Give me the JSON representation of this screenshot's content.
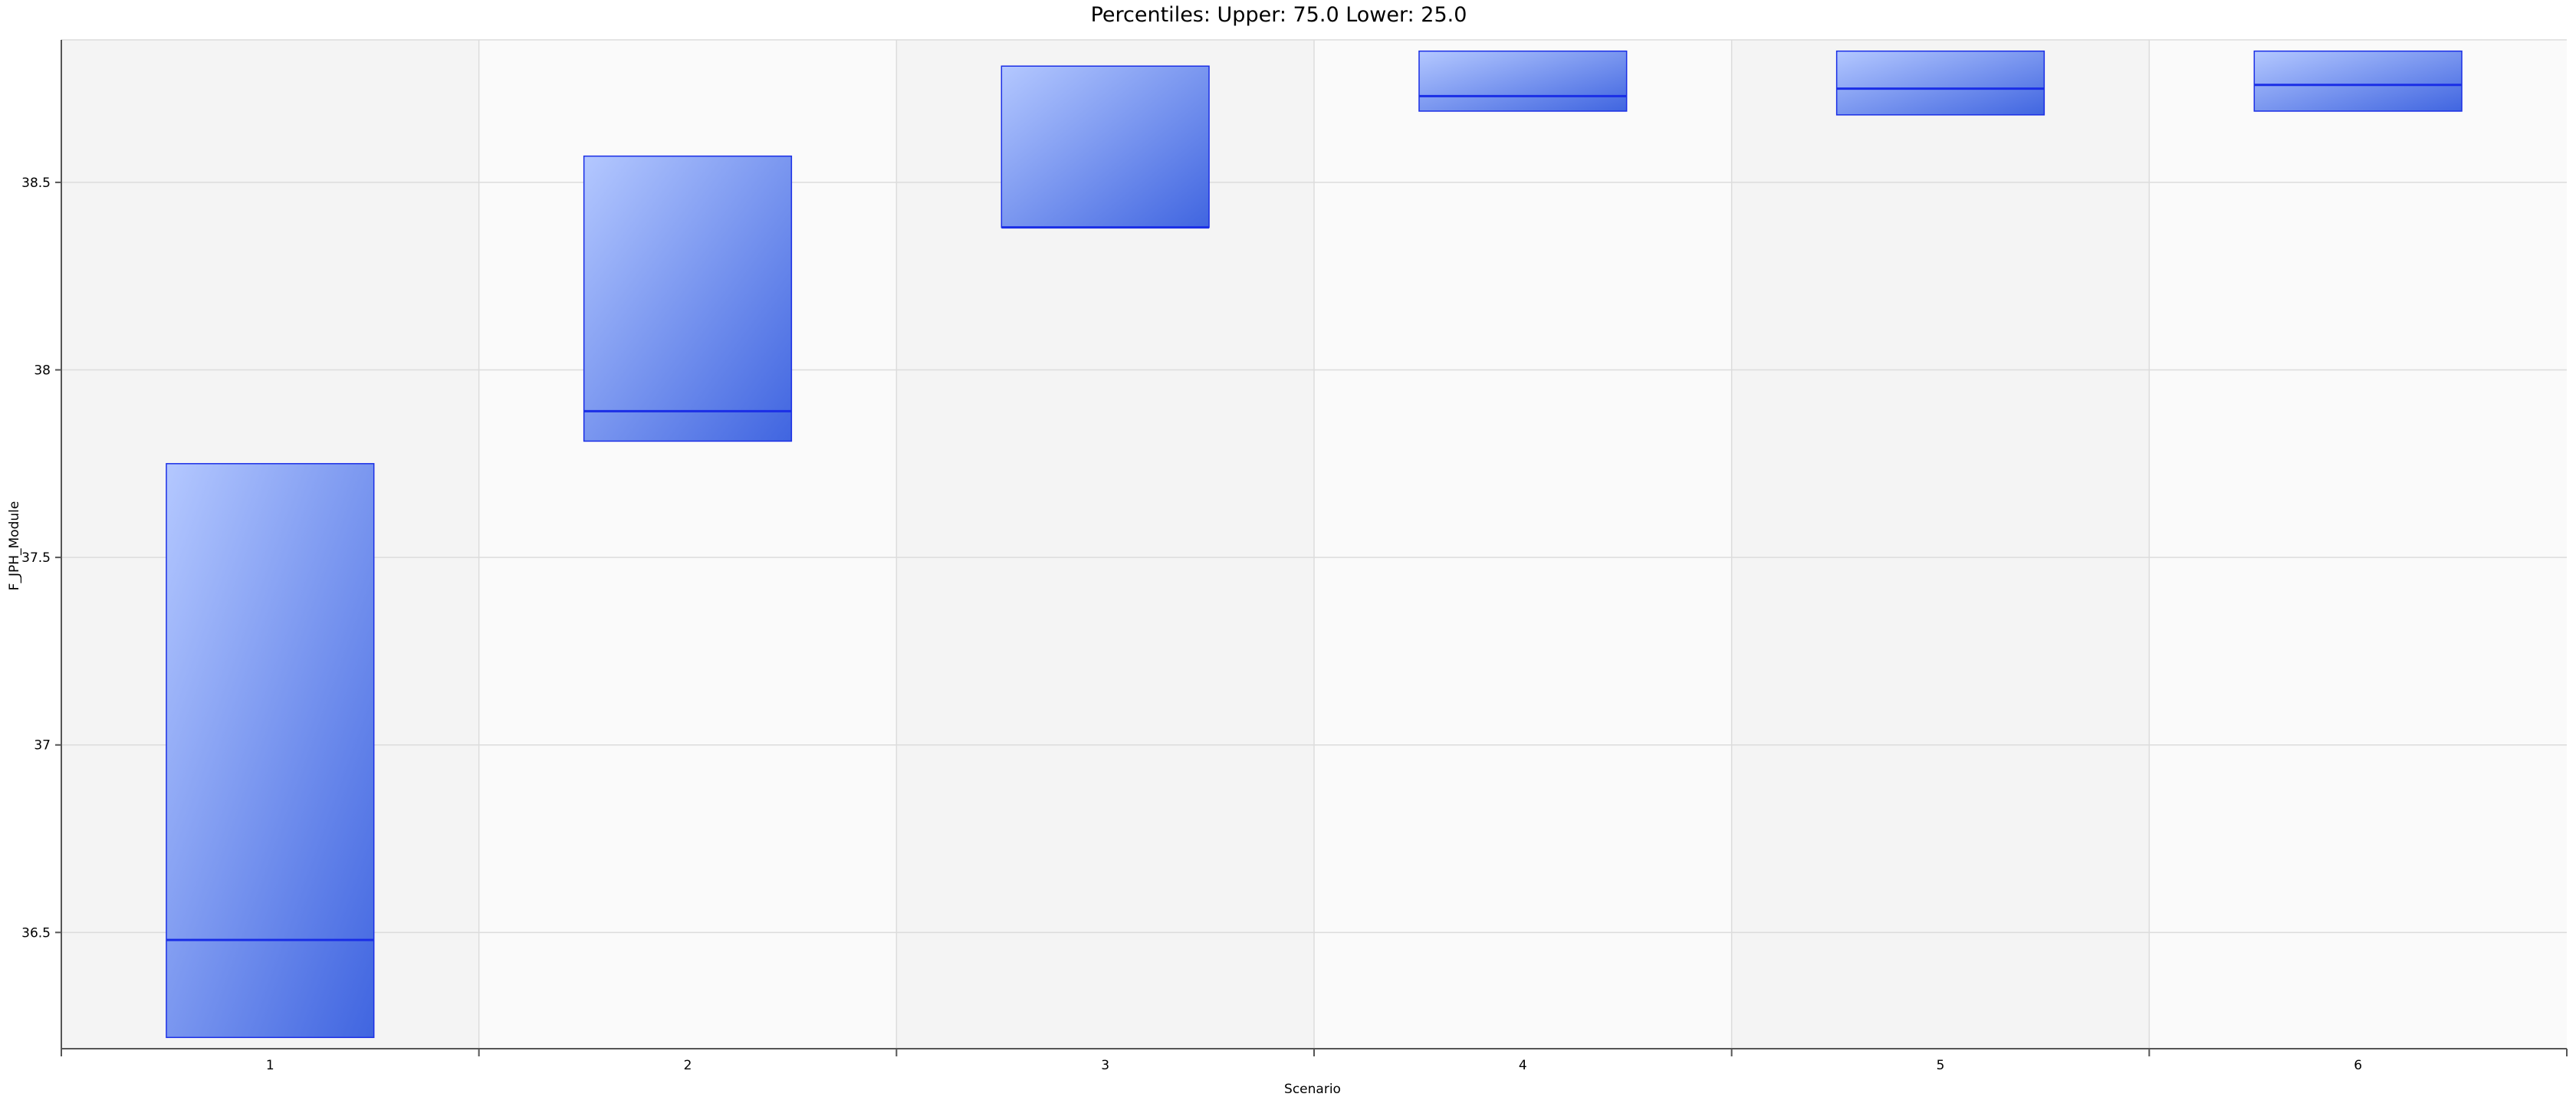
{
  "chart_data": {
    "type": "box",
    "title": "Percentiles: Upper: 75.0 Lower: 25.0",
    "xlabel": "Scenario",
    "ylabel": "F_JPH_Module",
    "categories": [
      "1",
      "2",
      "3",
      "4",
      "5",
      "6"
    ],
    "ylim": [
      36.19,
      38.88
    ],
    "yticks": [
      36.5,
      37,
      37.5,
      38,
      38.5
    ],
    "ytick_labels": [
      "36.5",
      "37",
      "37.5",
      "38",
      "38.5"
    ],
    "grid": true,
    "boxes": [
      {
        "category": "1",
        "lower": 36.22,
        "median": 36.48,
        "upper": 37.75
      },
      {
        "category": "2",
        "lower": 37.81,
        "median": 37.89,
        "upper": 38.57
      },
      {
        "category": "3",
        "lower": 38.38,
        "median": 38.38,
        "upper": 38.81
      },
      {
        "category": "4",
        "lower": 38.69,
        "median": 38.73,
        "upper": 38.85
      },
      {
        "category": "5",
        "lower": 38.68,
        "median": 38.75,
        "upper": 38.85
      },
      {
        "category": "6",
        "lower": 38.69,
        "median": 38.76,
        "upper": 38.85
      }
    ],
    "colors": {
      "box_fill_light": "#b4c8ff",
      "box_fill_dark": "#4065e0",
      "box_stroke": "#1a2ee6",
      "band_odd": "#f4f4f4",
      "band_even": "#fafafa",
      "grid": "#dcdcdc",
      "axis": "#555555"
    }
  }
}
